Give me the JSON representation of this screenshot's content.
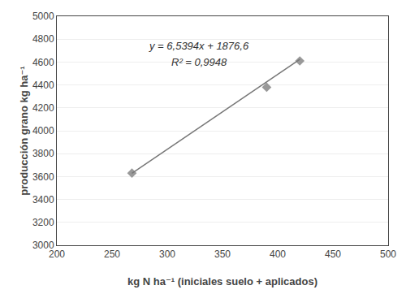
{
  "chart_data": {
    "type": "scatter",
    "xlabel": "kg N ha⁻¹ (iniciales suelo + aplicados)",
    "ylabel": "producción grano kg ha⁻¹",
    "series": [
      {
        "type": "scatter",
        "marker": "diamond",
        "color": "#999999",
        "x": [
          268,
          390,
          420
        ],
        "values": [
          3630,
          4380,
          4610
        ]
      },
      {
        "type": "line",
        "color": "#777777",
        "x": [
          268,
          420
        ],
        "values": [
          3629.1592,
          4623.148
        ]
      }
    ],
    "annotations": [
      "y = 6,5394x + 1876,6",
      "R² = 0,9948"
    ],
    "xlim": [
      200,
      500
    ],
    "ylim": [
      3000,
      5000
    ],
    "xticks": [
      200,
      250,
      300,
      350,
      400,
      450,
      500
    ],
    "yticks": [
      3000,
      3200,
      3400,
      3600,
      3800,
      4000,
      4200,
      4400,
      4600,
      4800,
      5000
    ],
    "grid": "y"
  }
}
